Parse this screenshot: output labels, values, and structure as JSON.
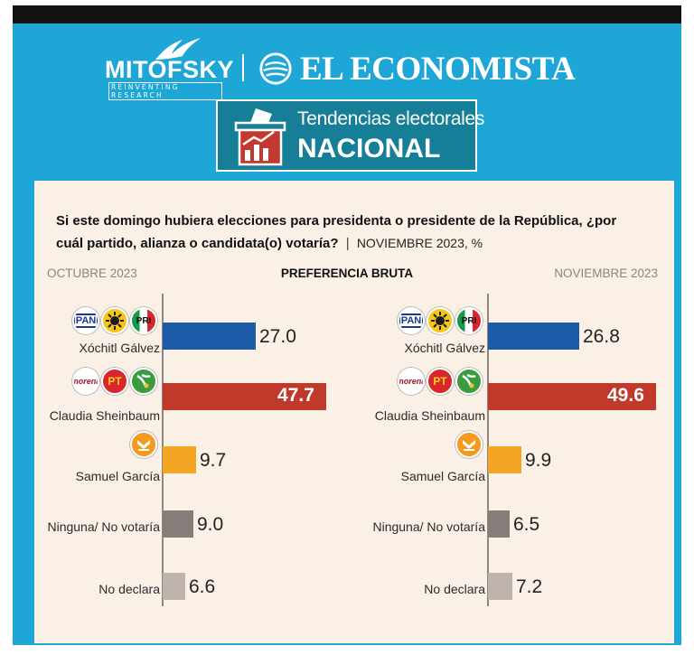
{
  "header": {
    "mitofsky": "MITOFSKY",
    "mitofsky_tagline": "REINVENTING RESEARCH",
    "economista": "EL ECONOMISTA",
    "banner_line1": "Tendencias electorales",
    "banner_line2": "NACIONAL"
  },
  "question": {
    "text": "Si este domingo hubiera elecciones para presidenta o presidente de la República, ¿por cuál partido, alianza o candidata(o) votaría?",
    "separator": "|",
    "date_unit": "NOVIEMBRE 2023, %"
  },
  "columns": {
    "left_title": "OCTUBRE 2023",
    "center_title": "PREFERENCIA BRUTA",
    "right_title": "NOVIEMBRE 2023"
  },
  "party_logos": {
    "pan": "PAN",
    "pri": "PRI",
    "morena": "morena",
    "pt": "PT"
  },
  "colors": {
    "frame": "#1ea6d6",
    "banner": "#167e96",
    "panel": "#fbf0e6",
    "galvez": "#1b5aa6",
    "sheinbaum": "#c0392b",
    "garcia": "#f5a524",
    "ninguna": "#857d79",
    "no_declara": "#bfb4ad"
  },
  "chart_data": [
    {
      "type": "bar",
      "title": "OCTUBRE 2023",
      "subtitle": "PREFERENCIA BRUTA",
      "categories": [
        "Xóchitl Gálvez",
        "Claudia Sheinbaum",
        "Samuel García",
        "Ninguna/ No votaría",
        "No declara"
      ],
      "values": [
        27.0,
        47.7,
        9.7,
        9.0,
        6.6
      ],
      "value_labels": [
        "27.0",
        "47.7",
        "9.7",
        "9.0",
        "6.6"
      ],
      "xlim": [
        0,
        50
      ],
      "orientation": "horizontal",
      "unit": "%"
    },
    {
      "type": "bar",
      "title": "NOVIEMBRE 2023",
      "subtitle": "PREFERENCIA BRUTA",
      "categories": [
        "Xóchitl Gálvez",
        "Claudia Sheinbaum",
        "Samuel García",
        "Ninguna/ No votaría",
        "No declara"
      ],
      "values": [
        26.8,
        49.6,
        9.9,
        6.5,
        7.2
      ],
      "value_labels": [
        "26.8",
        "49.6",
        "9.9",
        "6.5",
        "7.2"
      ],
      "xlim": [
        0,
        50
      ],
      "orientation": "horizontal",
      "unit": "%"
    }
  ]
}
